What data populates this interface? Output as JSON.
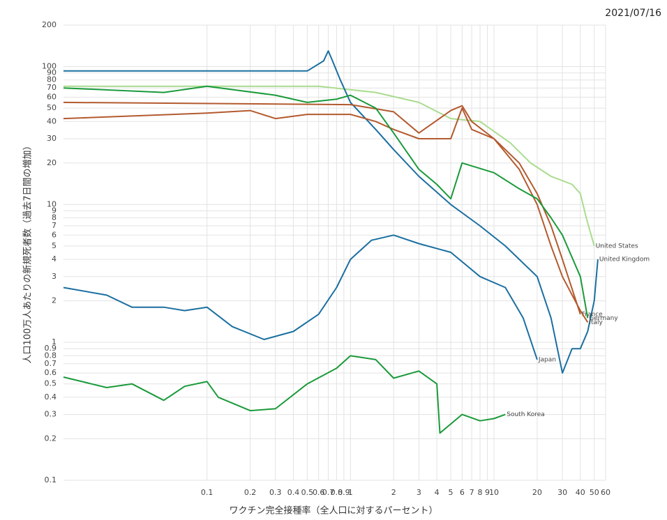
{
  "chart_data": {
    "type": "line",
    "date": "2021/07/16",
    "x_label": "ワクチン完全接種率（全人口に対するパーセント）",
    "y_label": "人口100万人あたりの新規死者数（過去7日間の増加）",
    "log_x": true,
    "log_y": true,
    "grid": true,
    "xlim": [
      0.01,
      60
    ],
    "ylim": [
      0.1,
      200
    ],
    "xticks": [
      0.1,
      0.2,
      0.3,
      0.4,
      0.5,
      0.6,
      0.7,
      0.8,
      0.9,
      1,
      2,
      3,
      4,
      5,
      6,
      7,
      8,
      9,
      10,
      20,
      30,
      40,
      50,
      60
    ],
    "yticks": [
      0.1,
      0.2,
      0.3,
      0.4,
      0.5,
      0.6,
      0.7,
      0.8,
      0.9,
      1,
      2,
      3,
      4,
      5,
      6,
      7,
      8,
      9,
      10,
      20,
      30,
      40,
      50,
      60,
      70,
      80,
      90,
      100,
      200
    ],
    "series": [
      {
        "name": "United States",
        "color": "#a9dc8e",
        "x": [
          0.01,
          0.3,
          0.6,
          1,
          1.5,
          3,
          5,
          8,
          13,
          18,
          25,
          35,
          40,
          44,
          50
        ],
        "values": [
          72,
          72,
          72,
          68,
          65,
          55,
          42,
          40,
          28,
          20,
          16,
          14,
          12,
          8,
          5
        ]
      },
      {
        "name": "United Kingdom",
        "color": "#1a6fa0",
        "x": [
          0.01,
          0.5,
          0.65,
          0.7,
          0.75,
          0.85,
          1,
          1.5,
          2,
          3,
          5,
          8,
          12,
          20,
          25,
          30,
          35,
          40,
          45,
          50,
          53
        ],
        "values": [
          93,
          93,
          110,
          130,
          110,
          80,
          55,
          35,
          25,
          16,
          10,
          7,
          5,
          3,
          1.5,
          0.6,
          0.9,
          0.9,
          1.2,
          2,
          4
        ]
      },
      {
        "name": "France",
        "color": "#b35a2e",
        "x": [
          0.01,
          1,
          2,
          3,
          5,
          6,
          7,
          10,
          15,
          20,
          25,
          30,
          40
        ],
        "values": [
          55,
          53,
          47,
          33,
          48,
          52,
          40,
          30,
          20,
          12,
          7,
          4,
          1.6
        ]
      },
      {
        "name": "Italy",
        "color": "#b35a2e",
        "x": [
          0.01,
          0.1,
          0.2,
          0.3,
          0.5,
          1,
          1.5,
          2,
          3,
          5,
          6,
          7,
          10,
          15,
          20,
          25,
          30,
          40,
          45
        ],
        "values": [
          42,
          46,
          48,
          42,
          45,
          45,
          40,
          35,
          30,
          30,
          50,
          35,
          30,
          18,
          10,
          5,
          3,
          1.7,
          1.4
        ]
      },
      {
        "name": "Germany",
        "color": "#1a9a3a",
        "x": [
          0.01,
          0.05,
          0.1,
          0.3,
          0.5,
          0.8,
          1,
          1.5,
          2,
          3,
          4,
          5,
          6,
          10,
          15,
          20,
          25,
          30,
          40,
          45
        ],
        "values": [
          70,
          65,
          72,
          62,
          55,
          58,
          62,
          50,
          33,
          18,
          14,
          11,
          20,
          17,
          13,
          11,
          8,
          6,
          3,
          1.5
        ]
      },
      {
        "name": "Japan",
        "color": "#1a6fa0",
        "x": [
          0.01,
          0.02,
          0.03,
          0.05,
          0.07,
          0.1,
          0.15,
          0.25,
          0.4,
          0.6,
          0.8,
          1,
          1.4,
          2,
          3,
          5,
          8,
          12,
          16,
          20
        ],
        "values": [
          2.5,
          2.2,
          1.8,
          1.8,
          1.7,
          1.8,
          1.3,
          1.05,
          1.2,
          1.6,
          2.5,
          4,
          5.5,
          6,
          5.2,
          4.5,
          3,
          2.5,
          1.5,
          0.75
        ]
      },
      {
        "name": "South Korea",
        "color": "#1a9a3a",
        "x": [
          0.01,
          0.02,
          0.03,
          0.05,
          0.07,
          0.1,
          0.12,
          0.2,
          0.3,
          0.5,
          0.8,
          1,
          1.5,
          2,
          3,
          4,
          4.2,
          6,
          8,
          10,
          12
        ],
        "values": [
          0.56,
          0.47,
          0.5,
          0.38,
          0.48,
          0.52,
          0.4,
          0.32,
          0.33,
          0.5,
          0.65,
          0.8,
          0.75,
          0.55,
          0.62,
          0.5,
          0.22,
          0.3,
          0.27,
          0.28,
          0.3
        ]
      }
    ]
  }
}
